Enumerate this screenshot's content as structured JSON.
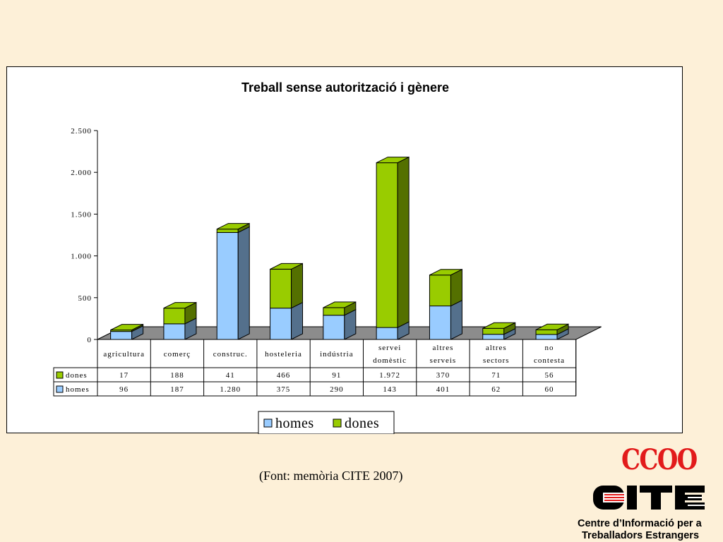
{
  "chart_data": {
    "type": "bar",
    "stacked": true,
    "three_d": true,
    "title": "Treball sense autorització i gènere",
    "categories": [
      [
        "agricultura"
      ],
      [
        "comerç"
      ],
      [
        "construc."
      ],
      [
        "hosteleria"
      ],
      [
        "indústria"
      ],
      [
        "servei",
        "domèstic"
      ],
      [
        "altres",
        "serveis"
      ],
      [
        "altres",
        "sectors"
      ],
      [
        "no",
        "contesta"
      ]
    ],
    "series": [
      {
        "name": "homes",
        "color": "#99ccff",
        "values": [
          96,
          187,
          1280,
          375,
          290,
          143,
          401,
          62,
          60
        ],
        "labels": [
          "96",
          "187",
          "1.280",
          "375",
          "290",
          "143",
          "401",
          "62",
          "60"
        ]
      },
      {
        "name": "dones",
        "color": "#99cc00",
        "values": [
          17,
          188,
          41,
          466,
          91,
          1972,
          370,
          71,
          56
        ],
        "labels": [
          "17",
          "188",
          "41",
          "466",
          "91",
          "1.972",
          "370",
          "71",
          "56"
        ]
      }
    ],
    "ylim": [
      0,
      2500
    ],
    "yticks": [
      0,
      500,
      1000,
      1500,
      2000,
      2500
    ],
    "ytick_labels": [
      "0",
      "500",
      "1.000",
      "1.500",
      "2.000",
      "2.500"
    ],
    "table_rows": [
      "dones",
      "homes"
    ],
    "legend": {
      "position": "bottom",
      "entries": [
        "homes",
        "dones"
      ]
    },
    "grid": false
  },
  "footer": {
    "source": "(Font: memòria CITE 2007)",
    "logo_ccoo": "CCOO",
    "org_line1": "Centre d’Informació per a",
    "org_line2": "Treballadors Estrangers"
  },
  "colors": {
    "background": "#fdf0d8",
    "floor": "#8c8c8c",
    "logo_red": "#e21b1b"
  }
}
